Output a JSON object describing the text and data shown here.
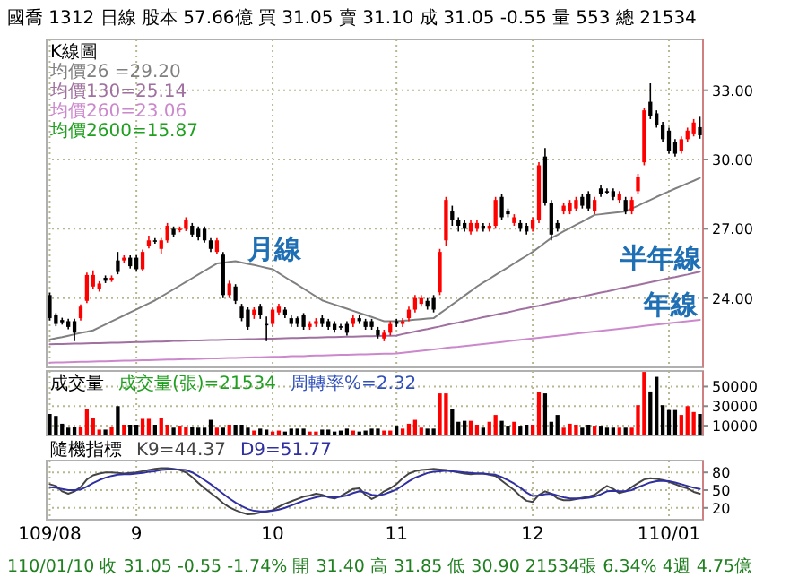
{
  "chart_data": [
    {
      "type": "candlestick",
      "title": "國喬 1312 日線 股本 57.66億 買 31.05 賣 31.10 成 31.05 -0.55 量 553 總 21534",
      "legend_title": "K線圖",
      "legend": "top left",
      "grid": true,
      "tick_labels": "y",
      "categories": [
        null,
        null,
        null,
        null,
        null,
        null,
        null,
        null,
        null,
        null,
        null,
        null,
        null,
        null,
        null,
        null,
        null,
        null,
        null,
        null,
        null,
        null,
        null,
        null,
        null,
        null,
        null,
        null,
        null,
        null,
        null,
        null,
        null,
        null,
        null,
        null,
        null,
        null,
        null,
        null,
        null,
        null,
        null,
        null,
        null,
        null,
        null,
        null,
        null,
        null,
        null,
        null,
        null,
        null,
        null,
        null,
        null,
        null,
        null,
        null,
        null,
        null,
        null,
        null,
        null,
        null,
        null,
        null,
        null,
        null,
        null,
        null,
        null,
        null,
        null,
        null,
        null,
        null,
        null,
        null,
        null,
        null,
        null,
        null,
        null,
        null,
        null,
        null,
        null,
        null,
        null,
        null,
        null,
        null,
        null,
        null,
        null,
        null,
        null,
        null,
        null,
        null,
        null,
        null,
        null,
        null
      ],
      "ylim": [
        21.0,
        35.2
      ],
      "yticks": [
        {
          "value": 24,
          "label": "24.00"
        },
        {
          "value": 27,
          "label": "27.00"
        },
        {
          "value": 30,
          "label": "30.00"
        },
        {
          "value": 33,
          "label": "33.00"
        }
      ],
      "ohlc": [
        [
          24.13,
          24.23,
          23.03,
          23.13
        ],
        [
          23.25,
          23.35,
          22.78,
          22.88
        ],
        [
          23.05,
          23.15,
          22.85,
          22.95
        ],
        [
          23.0,
          23.1,
          22.65,
          22.75
        ],
        [
          23.0,
          23.1,
          22.13,
          22.5
        ],
        [
          23.13,
          23.73,
          23.03,
          23.63
        ],
        [
          23.88,
          25.1,
          23.78,
          25.0
        ],
        [
          24.5,
          25.2,
          24.4,
          25.0
        ],
        [
          24.38,
          24.73,
          24.28,
          24.63
        ],
        [
          24.88,
          24.98,
          24.65,
          24.75
        ],
        [
          24.8,
          24.98,
          24.7,
          24.88
        ],
        [
          25.63,
          26.0,
          25.03,
          25.13
        ],
        [
          25.63,
          25.85,
          25.53,
          25.75
        ],
        [
          25.75,
          25.85,
          25.28,
          25.38
        ],
        [
          25.75,
          25.85,
          25.15,
          25.25
        ],
        [
          25.25,
          26.1,
          25.15,
          26.0
        ],
        [
          26.25,
          26.7,
          26.15,
          26.5
        ],
        [
          26.5,
          26.6,
          26.35,
          26.45
        ],
        [
          26.13,
          26.6,
          25.9,
          26.5
        ],
        [
          26.5,
          27.25,
          26.4,
          27.13
        ],
        [
          27.0,
          27.1,
          26.65,
          26.75
        ],
        [
          26.95,
          27.1,
          26.85,
          27.0
        ],
        [
          27.0,
          27.5,
          26.9,
          27.38
        ],
        [
          27.13,
          27.25,
          26.65,
          26.75
        ],
        [
          27.0,
          27.1,
          26.5,
          26.63
        ],
        [
          27.0,
          27.1,
          26.4,
          26.5
        ],
        [
          26.5,
          26.6,
          26.0,
          26.13
        ],
        [
          26.0,
          26.6,
          25.9,
          26.5
        ],
        [
          25.88,
          26.0,
          24.0,
          24.13
        ],
        [
          24.13,
          24.75,
          24.0,
          24.63
        ],
        [
          24.5,
          24.6,
          23.75,
          23.88
        ],
        [
          23.63,
          23.75,
          23.0,
          23.13
        ],
        [
          23.5,
          23.6,
          22.63,
          22.75
        ],
        [
          23.25,
          23.6,
          23.1,
          23.5
        ],
        [
          23.63,
          23.75,
          23.1,
          23.25
        ],
        [
          22.88,
          23.2,
          22.13,
          22.85
        ],
        [
          22.88,
          23.6,
          22.75,
          23.5
        ],
        [
          23.38,
          23.75,
          23.25,
          23.63
        ],
        [
          23.5,
          23.6,
          23.13,
          23.25
        ],
        [
          23.13,
          23.25,
          22.75,
          22.88
        ],
        [
          23.13,
          23.2,
          22.75,
          22.88
        ],
        [
          23.25,
          23.35,
          22.63,
          22.75
        ],
        [
          22.75,
          23.0,
          22.63,
          22.88
        ],
        [
          22.88,
          23.13,
          22.75,
          23.0
        ],
        [
          23.13,
          23.25,
          22.75,
          22.88
        ],
        [
          23.0,
          23.1,
          22.63,
          22.75
        ],
        [
          22.88,
          23.0,
          22.5,
          22.63
        ],
        [
          22.78,
          22.88,
          22.63,
          22.75
        ],
        [
          22.88,
          23.0,
          22.38,
          22.5
        ],
        [
          22.88,
          23.25,
          22.75,
          23.13
        ],
        [
          23.13,
          23.25,
          22.88,
          23.0
        ],
        [
          23.0,
          23.1,
          22.63,
          22.75
        ],
        [
          23.0,
          23.1,
          22.63,
          22.75
        ],
        [
          22.63,
          22.75,
          22.25,
          22.38
        ],
        [
          22.25,
          22.63,
          22.13,
          22.5
        ],
        [
          22.5,
          23.0,
          22.38,
          22.88
        ],
        [
          23.0,
          23.1,
          22.75,
          22.88
        ],
        [
          22.88,
          23.13,
          22.75,
          23.0
        ],
        [
          23.13,
          23.63,
          23.0,
          23.5
        ],
        [
          23.5,
          24.13,
          23.38,
          24.0
        ],
        [
          23.75,
          24.13,
          23.63,
          24.0
        ],
        [
          23.88,
          24.0,
          23.5,
          23.63
        ],
        [
          24.0,
          24.13,
          23.38,
          23.5
        ],
        [
          24.25,
          26.13,
          24.13,
          26.0
        ],
        [
          26.5,
          28.38,
          26.25,
          28.25
        ],
        [
          27.75,
          28.0,
          27.13,
          27.38
        ],
        [
          27.38,
          27.5,
          26.88,
          27.13
        ],
        [
          27.25,
          27.38,
          26.88,
          27.0
        ],
        [
          26.88,
          27.38,
          26.75,
          27.25
        ],
        [
          27.0,
          27.38,
          26.88,
          27.25
        ],
        [
          27.13,
          27.25,
          26.88,
          27.0
        ],
        [
          27.0,
          27.25,
          26.88,
          27.13
        ],
        [
          27.13,
          28.38,
          27.0,
          28.25
        ],
        [
          28.38,
          28.5,
          27.38,
          27.5
        ],
        [
          27.75,
          27.88,
          27.5,
          27.63
        ],
        [
          27.25,
          27.63,
          27.13,
          27.5
        ],
        [
          27.25,
          27.38,
          26.88,
          27.0
        ],
        [
          27.13,
          27.25,
          26.75,
          26.88
        ],
        [
          27.0,
          27.5,
          26.88,
          27.38
        ],
        [
          27.38,
          29.88,
          27.25,
          29.75
        ],
        [
          30.13,
          30.5,
          28.0,
          28.13
        ],
        [
          28.13,
          28.25,
          26.5,
          26.75
        ],
        [
          27.25,
          27.38,
          26.88,
          27.0
        ],
        [
          27.75,
          28.13,
          27.63,
          28.0
        ],
        [
          27.75,
          28.25,
          27.63,
          28.13
        ],
        [
          27.88,
          28.38,
          27.75,
          28.25
        ],
        [
          28.38,
          28.5,
          27.88,
          28.0
        ],
        [
          28.5,
          28.63,
          27.75,
          27.88
        ],
        [
          27.75,
          28.38,
          27.63,
          28.25
        ],
        [
          28.75,
          28.88,
          28.38,
          28.5
        ],
        [
          28.63,
          28.75,
          28.5,
          28.6
        ],
        [
          28.63,
          28.75,
          28.25,
          28.38
        ],
        [
          28.25,
          28.63,
          28.13,
          28.5
        ],
        [
          28.25,
          28.38,
          27.63,
          27.75
        ],
        [
          27.75,
          28.38,
          27.63,
          28.25
        ],
        [
          28.63,
          29.38,
          28.5,
          29.25
        ],
        [
          29.88,
          32.25,
          29.75,
          32.13
        ],
        [
          32.5,
          33.3,
          31.75,
          31.88
        ],
        [
          32.0,
          32.13,
          31.38,
          31.5
        ],
        [
          31.5,
          31.63,
          30.75,
          30.88
        ],
        [
          31.25,
          31.38,
          30.25,
          30.38
        ],
        [
          30.75,
          30.88,
          30.13,
          30.25
        ],
        [
          30.38,
          31.0,
          30.25,
          30.88
        ],
        [
          30.88,
          31.38,
          30.75,
          31.25
        ],
        [
          31.13,
          31.75,
          31.0,
          31.6
        ],
        [
          31.4,
          31.85,
          30.9,
          31.05
        ]
      ],
      "colors": [
        "#000000",
        "#000000",
        "#000000",
        "#000000",
        "#000000",
        "#ff0000",
        "#ff0000",
        "#ff0000",
        "#ff0000",
        "#000000",
        "#ff0000",
        "#000000",
        "#ff0000",
        "#000000",
        "#000000",
        "#ff0000",
        "#ff0000",
        "#000000",
        "#ff0000",
        "#ff0000",
        "#000000",
        "#ff0000",
        "#ff0000",
        "#000000",
        "#000000",
        "#000000",
        "#000000",
        "#ff0000",
        "#000000",
        "#ff0000",
        "#000000",
        "#000000",
        "#000000",
        "#ff0000",
        "#000000",
        "#000000",
        "#ff0000",
        "#ff0000",
        "#000000",
        "#000000",
        "#000000",
        "#000000",
        "#ff0000",
        "#ff0000",
        "#000000",
        "#000000",
        "#000000",
        "#000000",
        "#000000",
        "#ff0000",
        "#000000",
        "#000000",
        "#000000",
        "#000000",
        "#ff0000",
        "#ff0000",
        "#000000",
        "#ff0000",
        "#ff0000",
        "#ff0000",
        "#ff0000",
        "#000000",
        "#000000",
        "#ff0000",
        "#ff0000",
        "#000000",
        "#000000",
        "#000000",
        "#ff0000",
        "#ff0000",
        "#000000",
        "#ff0000",
        "#ff0000",
        "#000000",
        "#000000",
        "#ff0000",
        "#000000",
        "#000000",
        "#ff0000",
        "#ff0000",
        "#000000",
        "#000000",
        "#000000",
        "#ff0000",
        "#ff0000",
        "#ff0000",
        "#000000",
        "#000000",
        "#ff0000",
        "#000000",
        "#000000",
        "#000000",
        "#ff0000",
        "#000000",
        "#ff0000",
        "#ff0000",
        "#ff0000",
        "#000000",
        "#000000",
        "#000000",
        "#000000",
        "#000000",
        "#ff0000",
        "#ff0000",
        "#ff0000",
        "#000000"
      ],
      "series": [
        {
          "type": "line",
          "name": "均價26 =29.20",
          "color": "#808080",
          "values": [
            22.2,
            22.26,
            22.31,
            22.37,
            22.43,
            22.49,
            22.54,
            22.6,
            22.73,
            22.86,
            22.99,
            23.12,
            23.25,
            23.38,
            23.51,
            23.64,
            23.77,
            23.9,
            24.06,
            24.22,
            24.38,
            24.54,
            24.7,
            24.86,
            25.02,
            25.18,
            25.34,
            25.5,
            25.53,
            25.57,
            25.6,
            25.54,
            25.48,
            25.43,
            25.37,
            25.31,
            25.25,
            25.08,
            24.91,
            24.74,
            24.58,
            24.41,
            24.24,
            24.07,
            23.9,
            23.81,
            23.72,
            23.63,
            23.54,
            23.45,
            23.36,
            23.27,
            23.18,
            23.09,
            23.0,
            23.0,
            23.0,
            23.02,
            23.04,
            23.07,
            23.09,
            23.11,
            23.13,
            23.33,
            23.52,
            23.72,
            23.91,
            24.11,
            24.3,
            24.5,
            24.67,
            24.83,
            25.0,
            25.17,
            25.33,
            25.5,
            25.67,
            25.83,
            26.0,
            26.2,
            26.4,
            26.6,
            26.74,
            26.89,
            27.03,
            27.17,
            27.31,
            27.46,
            27.6,
            27.63,
            27.66,
            27.69,
            27.72,
            27.75,
            27.88,
            28.0,
            28.13,
            28.25,
            28.38,
            28.5,
            28.62,
            28.74,
            28.85,
            28.97,
            29.08,
            29.2
          ]
        },
        {
          "type": "line",
          "name": "均價130=25.14",
          "color": "#a070a0",
          "values": [
            22.0,
            22.01,
            22.01,
            22.02,
            22.03,
            22.03,
            22.04,
            22.05,
            22.05,
            22.06,
            22.07,
            22.07,
            22.08,
            22.09,
            22.1,
            22.1,
            22.11,
            22.12,
            22.12,
            22.13,
            22.14,
            22.14,
            22.15,
            22.16,
            22.16,
            22.17,
            22.18,
            22.18,
            22.19,
            22.2,
            22.2,
            22.21,
            22.22,
            22.22,
            22.23,
            22.24,
            22.24,
            22.25,
            22.26,
            22.27,
            22.27,
            22.28,
            22.29,
            22.29,
            22.3,
            22.31,
            22.31,
            22.32,
            22.33,
            22.33,
            22.34,
            22.35,
            22.35,
            22.36,
            22.37,
            22.37,
            22.38,
            22.44,
            22.49,
            22.55,
            22.61,
            22.66,
            22.72,
            22.77,
            22.83,
            22.89,
            22.94,
            23.0,
            23.06,
            23.11,
            23.17,
            23.22,
            23.28,
            23.34,
            23.39,
            23.45,
            23.51,
            23.56,
            23.62,
            23.67,
            23.73,
            23.79,
            23.84,
            23.9,
            23.96,
            24.01,
            24.07,
            24.12,
            24.18,
            24.24,
            24.29,
            24.35,
            24.41,
            24.46,
            24.52,
            24.57,
            24.63,
            24.69,
            24.74,
            24.8,
            24.86,
            24.91,
            24.97,
            25.02,
            25.08,
            25.14
          ]
        },
        {
          "type": "line",
          "name": "均價260=23.06",
          "color": "#cc88cc",
          "values": [
            21.2,
            21.21,
            21.21,
            21.22,
            21.23,
            21.24,
            21.24,
            21.25,
            21.26,
            21.26,
            21.27,
            21.28,
            21.29,
            21.29,
            21.3,
            21.31,
            21.31,
            21.32,
            21.33,
            21.34,
            21.34,
            21.35,
            21.36,
            21.36,
            21.37,
            21.38,
            21.39,
            21.39,
            21.4,
            21.41,
            21.41,
            21.42,
            21.43,
            21.44,
            21.44,
            21.45,
            21.46,
            21.46,
            21.47,
            21.48,
            21.49,
            21.49,
            21.5,
            21.51,
            21.51,
            21.52,
            21.53,
            21.54,
            21.54,
            21.55,
            21.56,
            21.56,
            21.57,
            21.58,
            21.59,
            21.59,
            21.6,
            21.63,
            21.66,
            21.69,
            21.72,
            21.75,
            21.78,
            21.81,
            21.84,
            21.87,
            21.89,
            21.92,
            21.95,
            21.98,
            22.01,
            22.04,
            22.07,
            22.1,
            22.13,
            22.16,
            22.19,
            22.22,
            22.25,
            22.28,
            22.31,
            22.34,
            22.37,
            22.4,
            22.43,
            22.46,
            22.49,
            22.52,
            22.55,
            22.58,
            22.61,
            22.64,
            22.67,
            22.7,
            22.73,
            22.76,
            22.79,
            22.82,
            22.85,
            22.88,
            22.91,
            22.94,
            22.97,
            23.0,
            23.03,
            23.06
          ]
        }
      ],
      "annotations": [
        "均價2600=15.87",
        "月線",
        "半年線",
        "年線"
      ]
    },
    {
      "type": "bar",
      "title": "成交量",
      "grid": true,
      "tick_labels": "y",
      "categories": [
        null,
        null,
        null,
        null,
        null,
        null,
        null,
        null,
        null,
        null,
        null,
        null,
        null,
        null,
        null,
        null,
        null,
        null,
        null,
        null,
        null,
        null,
        null,
        null,
        null,
        null,
        null,
        null,
        null,
        null,
        null,
        null,
        null,
        null,
        null,
        null,
        null,
        null,
        null,
        null,
        null,
        null,
        null,
        null,
        null,
        null,
        null,
        null,
        null,
        null,
        null,
        null,
        null,
        null,
        null,
        null,
        null,
        null,
        null,
        null,
        null,
        null,
        null,
        null,
        null,
        null,
        null,
        null,
        null,
        null,
        null,
        null,
        null,
        null,
        null,
        null,
        null,
        null,
        null,
        null,
        null,
        null,
        null,
        null,
        null,
        null,
        null,
        null,
        null,
        null,
        null,
        null,
        null,
        null,
        null,
        null,
        null,
        null,
        null,
        null,
        null,
        null,
        null,
        null,
        null,
        null
      ],
      "ylim": [
        0,
        66000
      ],
      "yticks": [
        10000,
        30000,
        50000
      ],
      "values": [
        22000,
        20000,
        12000,
        8000,
        9000,
        9000,
        27000,
        18000,
        6000,
        6000,
        9000,
        30000,
        11000,
        11000,
        11000,
        17000,
        17000,
        11000,
        18000,
        11000,
        8000,
        10000,
        9000,
        9000,
        8000,
        8000,
        16000,
        8000,
        8000,
        11000,
        11000,
        11000,
        8000,
        5000,
        7000,
        6000,
        4000,
        5000,
        4000,
        7000,
        7000,
        7000,
        4000,
        4000,
        6000,
        6000,
        4000,
        5000,
        7000,
        5000,
        4000,
        5000,
        7000,
        7000,
        5000,
        5000,
        10000,
        7000,
        12000,
        16000,
        8000,
        7000,
        7000,
        43000,
        43000,
        27000,
        14000,
        15000,
        15000,
        11000,
        8000,
        14000,
        21000,
        15000,
        10000,
        14000,
        10000,
        11000,
        11000,
        44000,
        43000,
        14000,
        21000,
        8000,
        12000,
        11000,
        8000,
        11000,
        10000,
        10000,
        8000,
        8000,
        8000,
        8000,
        8000,
        31000,
        65000,
        45000,
        60000,
        31000,
        26000,
        26000,
        21000,
        30000,
        24000,
        22000
      ],
      "colors": [
        "#000000",
        "#000000",
        "#000000",
        "#000000",
        "#000000",
        "#ff0000",
        "#ff0000",
        "#ff0000",
        "#ff0000",
        "#000000",
        "#ff0000",
        "#000000",
        "#ff0000",
        "#000000",
        "#000000",
        "#ff0000",
        "#ff0000",
        "#000000",
        "#ff0000",
        "#ff0000",
        "#000000",
        "#ff0000",
        "#ff0000",
        "#000000",
        "#000000",
        "#000000",
        "#000000",
        "#ff0000",
        "#000000",
        "#ff0000",
        "#000000",
        "#000000",
        "#000000",
        "#ff0000",
        "#000000",
        "#000000",
        "#ff0000",
        "#ff0000",
        "#000000",
        "#000000",
        "#000000",
        "#000000",
        "#ff0000",
        "#ff0000",
        "#000000",
        "#000000",
        "#000000",
        "#000000",
        "#000000",
        "#ff0000",
        "#000000",
        "#000000",
        "#000000",
        "#000000",
        "#ff0000",
        "#ff0000",
        "#000000",
        "#ff0000",
        "#ff0000",
        "#ff0000",
        "#ff0000",
        "#000000",
        "#000000",
        "#ff0000",
        "#ff0000",
        "#000000",
        "#000000",
        "#000000",
        "#ff0000",
        "#ff0000",
        "#000000",
        "#ff0000",
        "#ff0000",
        "#000000",
        "#000000",
        "#ff0000",
        "#000000",
        "#000000",
        "#ff0000",
        "#ff0000",
        "#000000",
        "#000000",
        "#000000",
        "#ff0000",
        "#ff0000",
        "#ff0000",
        "#000000",
        "#000000",
        "#ff0000",
        "#000000",
        "#000000",
        "#000000",
        "#ff0000",
        "#000000",
        "#ff0000",
        "#ff0000",
        "#ff0000",
        "#000000",
        "#000000",
        "#000000",
        "#000000",
        "#000000",
        "#ff0000",
        "#ff0000",
        "#ff0000",
        "#000000"
      ],
      "annotations": [
        "成交量(張)=21534",
        "周轉率%=2.32"
      ]
    },
    {
      "type": "line",
      "title": "隨機指標",
      "grid": true,
      "legend": "top left",
      "categories": [
        "109/08",
        null,
        null,
        null,
        null,
        null,
        null,
        null,
        null,
        null,
        null,
        null,
        null,
        null,
        "9",
        null,
        null,
        null,
        null,
        null,
        null,
        null,
        null,
        null,
        null,
        null,
        null,
        null,
        null,
        null,
        null,
        null,
        null,
        null,
        null,
        null,
        "10",
        null,
        null,
        null,
        null,
        null,
        null,
        null,
        null,
        null,
        null,
        null,
        null,
        null,
        null,
        null,
        null,
        null,
        null,
        null,
        "11",
        null,
        null,
        null,
        null,
        null,
        null,
        null,
        null,
        null,
        null,
        null,
        null,
        null,
        null,
        null,
        null,
        null,
        null,
        null,
        null,
        null,
        "12",
        null,
        null,
        null,
        null,
        null,
        null,
        null,
        null,
        null,
        null,
        null,
        null,
        null,
        null,
        null,
        null,
        null,
        null,
        null,
        null,
        null,
        "110/01",
        null,
        null,
        null,
        null,
        null
      ],
      "ylim": [
        0,
        100
      ],
      "yticks": [
        20,
        50,
        80
      ],
      "series": [
        {
          "name": "K9=44.37",
          "color": "#444444",
          "values": [
            60,
            57,
            48,
            44,
            48,
            55,
            68,
            75,
            78,
            80,
            80,
            79,
            78,
            79,
            80,
            82,
            84,
            86,
            87,
            87,
            86,
            84,
            80,
            72,
            62,
            53,
            45,
            37,
            28,
            21,
            16,
            12,
            9,
            10,
            12,
            14,
            16,
            22,
            27,
            31,
            35,
            39,
            41,
            44,
            42,
            38,
            36,
            40,
            46,
            52,
            53,
            42,
            35,
            40,
            48,
            53,
            60,
            70,
            78,
            82,
            84,
            85,
            86,
            85,
            84,
            82,
            80,
            78,
            77,
            78,
            78,
            76,
            74,
            66,
            58,
            50,
            40,
            32,
            30,
            42,
            48,
            44,
            36,
            33,
            33,
            35,
            37,
            39,
            42,
            50,
            57,
            52,
            45,
            48,
            55,
            62,
            68,
            70,
            69,
            67,
            64,
            60,
            56,
            53,
            47,
            44
          ]
        },
        {
          "name": "D9=51.77",
          "color": "#3030a0",
          "values": [
            55,
            54,
            52,
            50,
            50,
            51,
            56,
            62,
            67,
            71,
            74,
            76,
            77,
            77,
            78,
            79,
            81,
            82,
            84,
            85,
            85,
            85,
            84,
            80,
            74,
            67,
            60,
            52,
            44,
            36,
            29,
            23,
            18,
            15,
            14,
            14,
            15,
            17,
            20,
            24,
            28,
            32,
            35,
            38,
            40,
            39,
            38,
            39,
            41,
            45,
            48,
            46,
            42,
            41,
            43,
            47,
            51,
            58,
            65,
            71,
            75,
            79,
            81,
            82,
            83,
            82,
            81,
            80,
            79,
            78,
            78,
            77,
            76,
            72,
            67,
            61,
            54,
            46,
            40,
            41,
            43,
            44,
            41,
            38,
            36,
            36,
            36,
            37,
            39,
            43,
            48,
            49,
            48,
            48,
            50,
            55,
            59,
            63,
            65,
            66,
            65,
            63,
            60,
            57,
            54,
            52
          ]
        }
      ],
      "annotations": [
        "110/01/10 收 31.05 -0.55 -1.74% 開 31.40 高 31.85 低 30.90 21534張 6.34% 4週 4.75億"
      ]
    }
  ]
}
